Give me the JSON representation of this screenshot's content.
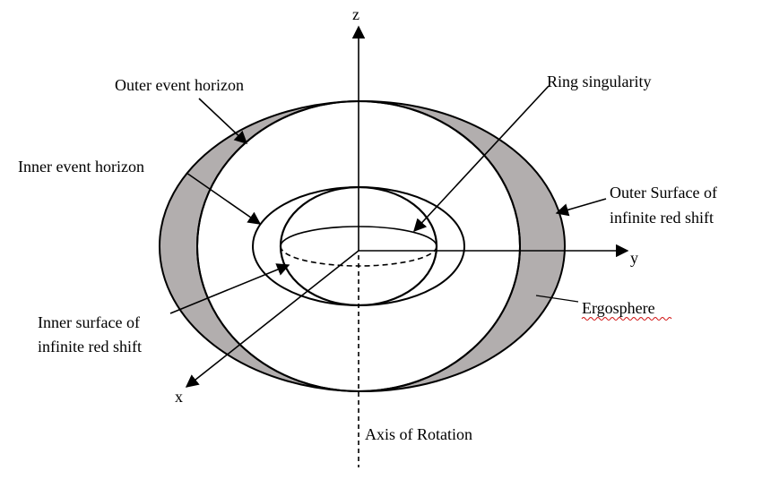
{
  "labels": {
    "z_axis": "z",
    "y_axis": "y",
    "x_axis": "x",
    "outer_event_horizon": "Outer event horizon",
    "inner_event_horizon": "Inner event horizon",
    "ring_singularity": "Ring singularity",
    "outer_surface_line1": "Outer Surface of",
    "outer_surface_line2": "infinite red shift",
    "inner_surface_line1": "Inner surface of",
    "inner_surface_line2": "infinite red shift",
    "ergosphere": "Ergosphere",
    "axis_of_rotation": "Axis of Rotation"
  },
  "colors": {
    "ergosphere_fill": "#b2aeae",
    "stroke": "#000000",
    "spellcheck_underline": "#d01010"
  }
}
